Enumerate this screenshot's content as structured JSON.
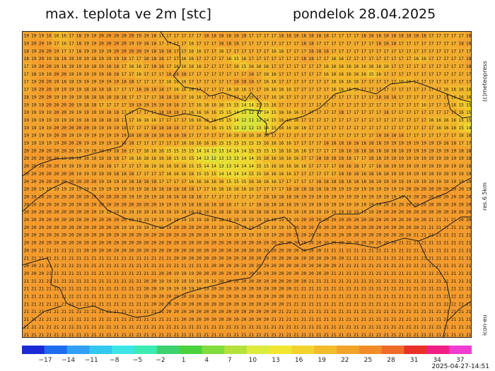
{
  "title": {
    "left": "max. teplota ve 2m [stc]",
    "right": "pondelok 28.04.2025"
  },
  "side_labels": {
    "copyright": "(c)meteopress",
    "resolution": "res.6.5km",
    "model": "icon-eu"
  },
  "run_timestamp": "2025-04-27-14:51",
  "colorbar": {
    "ticks": [
      "-17",
      "-14",
      "-11",
      "-8",
      "-5",
      "-2",
      "1",
      "4",
      "7",
      "10",
      "13",
      "16",
      "19",
      "22",
      "25",
      "28",
      "31",
      "34",
      "37"
    ],
    "colors": [
      "#1a2bd6",
      "#1f6cf0",
      "#2fa0f5",
      "#32c8f0",
      "#3ce6e6",
      "#3cebb4",
      "#3cd26e",
      "#49d23c",
      "#82dc3c",
      "#b4e13c",
      "#dceb3c",
      "#f0e632",
      "#f2d22d",
      "#f2bb2a",
      "#f2a32a",
      "#f28c28",
      "#f06a28",
      "#e83228",
      "#f01e82",
      "#f03cd2"
    ]
  },
  "map": {
    "rows": [
      "19 19 19 18 16 16 17 18 19 19 20 20 20 20 20 19 19 18 17 17 17 17 17 17 18 18 18 18 18 18 17 17 17 17 18 18 18 18 18 18 18 17 17 17 17 18 18 18 18 18 18 18 18 18 17 17 17 17 17 18",
      "19 20 20 19 17 16 17 18 19 19 20 20 20 20 19 19 18 18 17 17 17 17 16 17 17 17 18 18 18 17 17 17 17 17 17 17 17 18 18 17 17 17 17 17 17 17 17 18 18 18 17 17 17 17 17 17 17 17 18 18",
      "18 19 20 20 19 17 17 18 19 19 19 19 20 20 20 20 19 18 18 18 17 17 16 16 17 17 16 17 17 17 17 17 17 16 16 17 17 17 18 18 18 17 17 17 17 17 17 17 17 17 17 17 17 17 17 17 17 17 17 17",
      "18 19 20 19 18 18 19 19 19 18 19 19 19 18 17 17 18 18 18 17 17 16 16 17 17 17 17 16 15 16 17 17 17 17 17 17 17 18 18 17 17 16 16 17 17 17 17 17 17 17 17 17 16 16 17 17 17 17 17 18",
      "17 19 20 20 19 18 19 19 19 18 19 18 18 17 16 16 17 18 18 17 16 16 16 16 17 17 17 17 16 15 16 16 16 17 17 17 17 17 17 17 16 16 16 16 16 16 16 16 16 17 17 17 17 17 17 17 17 17 17 18",
      "17 18 19 19 20 20 19 19 19 19 19 18 18 17 17 16 17 17 17 18 18 18 17 17 17 17 17 17 17 17 18 17 16 16 17 17 17 17 17 17 16 16 16 16 16 16 15 16 17 17 17 17 17 17 17 17 17 17 17 17",
      "17 19 20 20 19 18 18 19 19 19 19 19 19 18 18 17 17 17 17 16 16 16 17 17 17 17 17 17 18 18 18 17 16 16 17 17 17 17 17 17 17 16 16 16 16 17 17 17 17 17 16 16 17 17 17 17 17 17 17 17",
      "17 19 20 20 19 19 19 19 18 18 18 18 17 17 17 18 18 18 18 17 16 16 16 17 17 17 17 16 16 16 17 17 16 16 16 16 17 17 17 17 17 16 16 16 16 17 17 17 17 17 17 17 17 17 17 17 16 16 16 16",
      "18 19 20 20 19 19 19 19 18 18 18 18 18 18 17 17 17 17 18 18 18 17 16 16 17 17 17 17 17 16 16 17 17 16 16 17 17 17 17 17 17 17 17 17 17 17 17 18 18 18 17 17 17 17 17 17 17 16 16 16",
      "19 19 19 20 20 20 20 19 18 18 17 17 17 17 19 19 19 19 19 19 18 17 17 16 16 16 16 15 15 14 14 15 15 16 17 17 17 17 17 17 17 17 17 17 17 17 17 17 17 17 17 17 17 16 17 17 17 16 15 15",
      "19 19 19 19 20 20 19 19 19 19 19 18 18 17 17 17 17 17 18 18 18 17 16 16 16 16 15 15 14 13 12 13 14 15 16 16 16 17 17 17 17 17 18 17 17 17 17 17 18 17 17 17 17 17 17 17 17 17 16 15",
      "19 19 19 19 19 19 19 19 18 18 18 18 18 17 17 16 16 16 17 17 17 17 16 16 16 16 15 15 14 12 11 12 14 15 16 16 16 17 17 17 17 17 17 17 17 17 17 17 17 17 17 17 17 17 16 16 16 16 15 15",
      "19 19 19 19 20 20 20 20 20 19 19 19 19 18 17 17 17 18 18 18 18 17 17 17 16 16 15 15 13 12 12 13 14 15 16 16 16 16 17 17 17 17 17 17 17 17 17 17 17 17 17 17 17 17 17 16 16 16 15 14",
      "19 19 19 19 20 20 19 19 19 19 19 19 19 19 18 18 18 18 18 18 18 18 17 17 17 17 17 16 16 16 16 16 16 17 17 17 17 17 17 17 17 17 17 17 17 17 17 18 18 18 18 17 17 17 17 17 17 17 16 16",
      "19 19 19 19 19 20 20 20 19 19 19 19 18 18 18 17 17 17 17 17 17 16 16 16 16 16 15 15 15 15 15 15 16 16 16 16 17 17 17 17 18 18 18 18 18 18 18 18 19 19 19 19 19 19 19 19 18 18 17 17",
      "20 20 20 20 20 20 20 19 19 19 19 19 18 18 17 17 16 16 16 15 15 15 15 14 14 13 13 14 14 14 15 15 15 15 16 16 16 16 17 17 17 17 18 18 18 18 18 18 18 18 18 19 19 19 19 19 19 19 18 18",
      "20 20 20 20 20 19 19 19 18 18 18 18 18 17 16 16 16 16 16 16 15 15 15 14 13 12 13 13 13 14 14 15 16 16 16 16 16 17 17 18 18 18 18 18 17 17 18 18 19 19 19 19 19 19 19 19 19 19 19 18",
      "20 20 20 20 20 19 19 19 19 19 18 18 17 17 17 17 16 16 16 16 16 16 15 15 14 14 13 13 14 14 14 15 15 16 16 16 16 16 17 17 17 17 18 18 18 17 17 18 18 19 19 19 19 19 19 19 19 19 19 18",
      "20 20 20 20 20 20 20 19 19 19 19 19 18 18 18 17 17 17 17 16 16 16 16 15 15 15 14 14 14 14 15 15 16 16 16 16 17 17 17 17 17 17 18 18 18 18 18 18 18 19 19 19 19 19 19 19 19 19 19 19",
      "20 20 20 20 20 20 20 20 20 20 19 19 19 19 18 18 18 18 17 17 17 17 16 16 16 16 16 15 15 15 16 16 16 16 17 17 17 17 17 18 18 18 18 18 18 18 18 19 19 19 19 19 19 19 19 19 19 19 19 19",
      "20 20 19 19 19 19 19 19 19 19 19 19 19 19 19 19 18 18 18 18 18 18 18 17 17 16 16 16 16 16 16 17 17 17 17 18 18 18 18 18 18 19 19 19 19 19 19 19 19 19 19 20 20 20 20 20 20 20 20 19",
      "20 20 20 20 20 20 20 20 20 20 20 20 20 20 19 19 19 19 18 18 18 18 18 18 17 17 17 17 17 17 17 17 18 18 18 18 18 19 19 19 19 19 19 19 19 19 19 19 19 19 19 19 20 20 20 20 20 20 20 20",
      "20 20 20 20 20 20 20 20 20 20 20 20 20 20 20 20 20 20 19 19 19 19 18 18 18 18 18 18 17 17 17 18 18 18 18 18 19 19 19 19 19 19 19 19 19 19 19 19 20 20 20 20 20 20 20 20 20 20 20 20",
      "20 20 20 20 20 20 20 20 20 20 19 19 19 19 19 19 19 19 19 19 19 18 18 18 18 18 18 18 18 18 18 18 18 18 19 19 19 19 19 19 19 19 19 19 19 19 19 20 20 20 20 20 20 20 20 20 20 20 20 20",
      "20 20 20 20 20 20 20 20 20 20 20 20 20 20 19 19 19 19 19 19 19 19 19 19 18 18 18 18 18 18 19 19 19 19 19 19 19 20 20 20 20 20 20 20 20 20 20 20 20 20 20 20 20 20 21 21 21 21 20 20",
      "20 20 20 20 20 20 20 20 20 20 20 20 20 19 19 19 19 19 19 19 20 20 20 20 20 19 19 19 19 19 19 19 19 19 19 19 20 20 20 20 20 20 20 20 20 20 20 20 20 20 20 20 20 21 21 21 21 21 21 20",
      "20 20 20 20 20 20 20 20 20 20 20 20 20 20 20 20 20 20 20 20 20 20 20 20 20 19 19 19 19 19 19 19 19 19 20 20 20 20 20 20 20 20 20 20 20 20 20 20 20 20 20 20 21 21 21 21 21 21 21 21",
      "20 20 20 20 20 20 20 20 20 20 20 20 20 20 20 20 20 20 20 20 20 20 20 20 20 20 20 20 20 20 20 20 20 20 20 20 20 20 20 20 20 20 20 20 20 20 20 20 20 20 21 21 21 21 21 21 21 21 21 21",
      "20 20 21 21 21 21 21 21 20 20 20 20 20 20 20 20 20 20 20 20 20 20 20 20 20 20 20 20 20 20 20 20 20 20 20 20 20 20 20 20 21 21 21 21 21 21 21 21 21 21 21 21 21 21 21 21 21 21 21 21",
      "21 21 21 21 21 21 21 21 21 21 21 21 21 21 21 21 21 21 21 21 20 20 20 20 20 20 20 20 20 20 20 20 20 20 20 20 20 20 20 20 20 20 20 21 21 21 21 21 21 21 21 21 21 21 21 21 21 21 21 21",
      "20 20 21 21 21 21 21 21 21 21 21 21 21 21 21 21 21 21 21 21 21 21 21 21 21 20 20 20 20 20 20 20 20 20 20 20 20 20 20 20 20 20 21 21 21 21 21 21 21 21 21 21 21 21 21 21 21 21 21 21",
      "20 20 20 21 21 21 21 21 21 21 21 21 21 21 21 21 21 21 20 20 19 19 19 20 20 20 20 20 20 20 20 20 20 20 20 20 20 20 20 20 20 21 21 21 21 21 21 21 21 21 21 21 21 21 21 21 21 21 21 21",
      "21 21 21 21 21 21 21 21 21 21 21 21 21 21 21 21 20 20 19 19 19 19 19 19 19 19 20 20 20 20 20 20 20 20 20 20 20 20 21 21 21 21 21 21 21 21 21 21 21 21 21 21 21 21 21 21 21 21 21 21",
      "21 21 21 21 21 21 21 21 21 21 21 21 21 21 21 21 20 20 19 19 19 19 19 19 19 20 20 20 20 20 20 20 20 20 20 20 21 21 21 21 21 21 21 21 21 21 21 21 21 21 21 21 21 21 21 21 21 21 21 21",
      "21 21 21 21 21 21 21 21 21 21 21 21 21 21 21 21 20 20 20 20 20 20 20 20 20 20 20 20 20 20 20 20 20 20 20 20 21 21 21 21 21 21 21 21 21 21 21 21 21 21 21 21 21 21 21 21 21 22 22 21",
      "21 21 21 21 21 21 21 21 21 21 21 21 21 21 21 21 21 20 20 20 20 20 20 20 20 20 20 20 20 20 20 20 20 20 20 21 21 21 21 21 21 21 21 21 21 21 21 21 21 21 21 21 21 21 21 21 22 22 22 21",
      "21 21 21 21 21 21 21 21 21 21 21 21 21 21 21 21 21 21 21 20 20 20 20 20 20 20 20 20 20 20 20 20 20 20 21 21 21 21 21 21 21 21 21 21 21 21 21 21 21 21 21 21 21 21 21 21 21 21 21 21",
      "21 21 21 21 21 21 21 21 21 21 21 21 21 21 21 21 21 21 21 21 21 20 20 20 20 20 20 20 20 20 20 20 20 21 21 21 21 21 21 21 21 21 21 21 21 21 21 21 21 21 21 21 21 21 21 21 21 21 21 21",
      "21 21 21 21 21 21 21 21 21 21 21 21 21 21 21 21 21 21 21 21 21 21 21 21 21 21 21 21 21 21 21 21 21 21 21 21 21 21 21 21 21 21 21 21 21 21 21 21 21 21 21 21 21 21 21 21 21 21 21 21",
      "21 21 21 21 21 21 21 21 21 21 21 21 21 21 21 21 21 21 21 21 21 21 21 21 21 21 21 21 21 21 21 21 21 21 21 21 21 21 21 21 21 21 21 21 21 21 21 21 21 21 21 21 21 21 21 21 21 21 21 21"
    ]
  }
}
